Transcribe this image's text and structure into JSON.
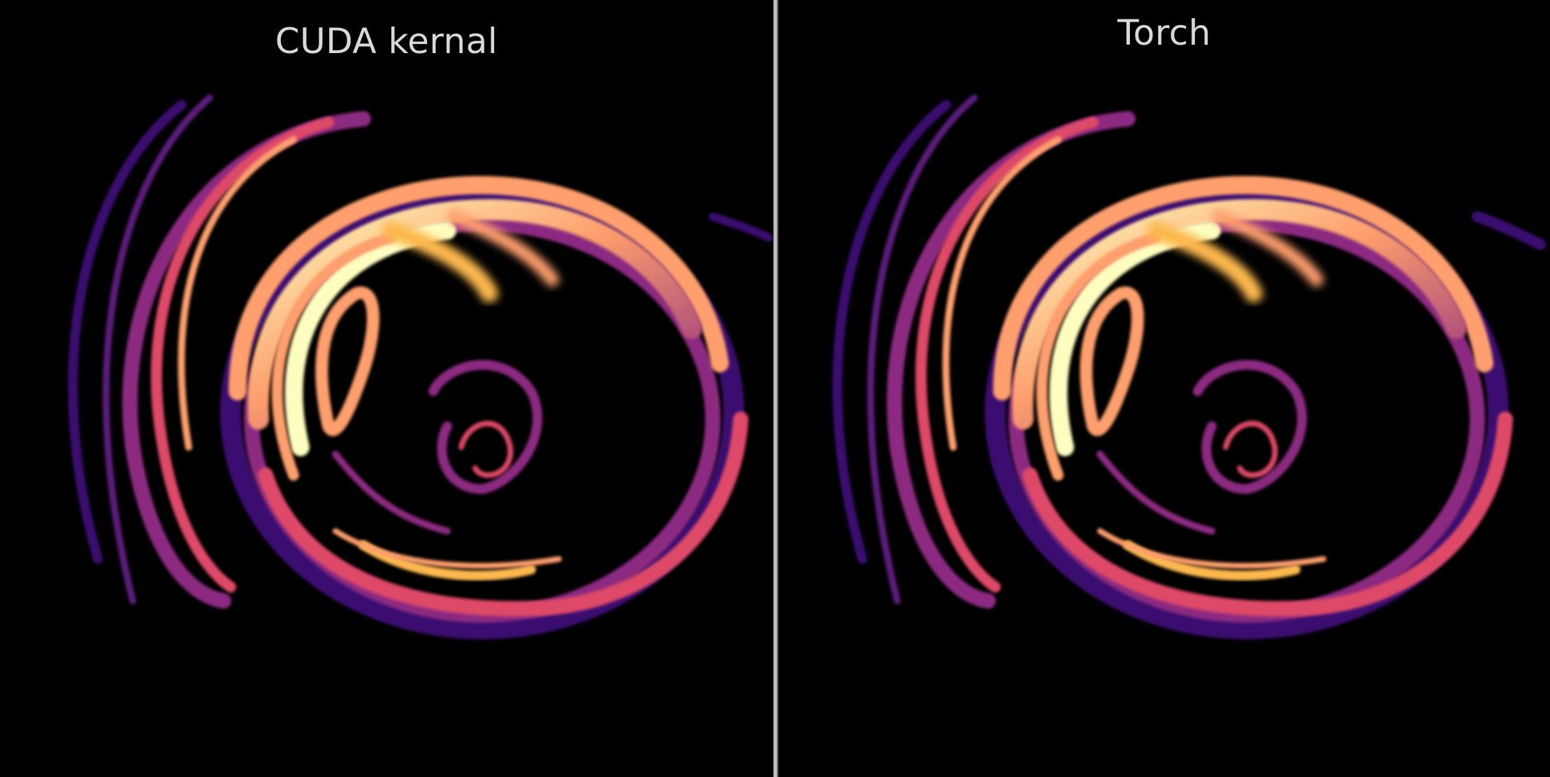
{
  "panels": [
    {
      "title": "CUDA kernal"
    },
    {
      "title": "Torch"
    }
  ],
  "colormap": [
    "#000004",
    "#3b0f70",
    "#8c2981",
    "#de4968",
    "#fe9f6d",
    "#fcfdbf"
  ]
}
